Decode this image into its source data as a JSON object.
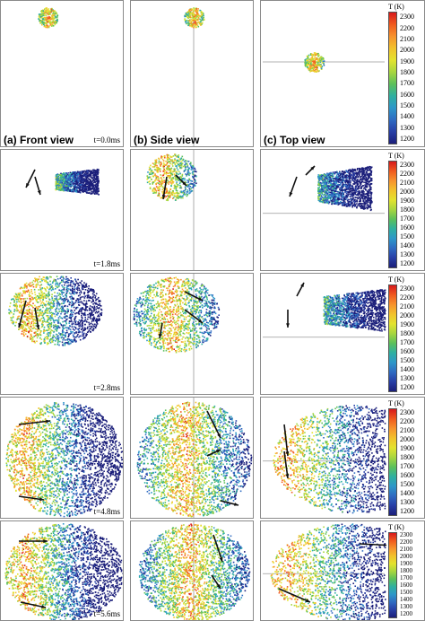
{
  "views": [
    {
      "id": "front",
      "title": "(a) Front view"
    },
    {
      "id": "side",
      "title": "(b) Side view"
    },
    {
      "id": "top",
      "title": "(c) Top view"
    }
  ],
  "times": [
    "t=0.0ms",
    "t=1.8ms",
    "t=2.8ms",
    "t=4.8ms",
    "t=5.6ms"
  ],
  "colorbar": {
    "title": "T (K)",
    "ticks": [
      "2300",
      "2200",
      "2100",
      "2000",
      "1900",
      "1800",
      "1700",
      "1600",
      "1500",
      "1400",
      "1300",
      "1200"
    ],
    "colors": [
      "#d7191c",
      "#f05a1e",
      "#f7932d",
      "#f2c22c",
      "#e3e32e",
      "#a7d63f",
      "#5cc05a",
      "#2fb0a0",
      "#2d97c9",
      "#2f6bc2",
      "#283fa6",
      "#1b1e7a"
    ]
  }
}
